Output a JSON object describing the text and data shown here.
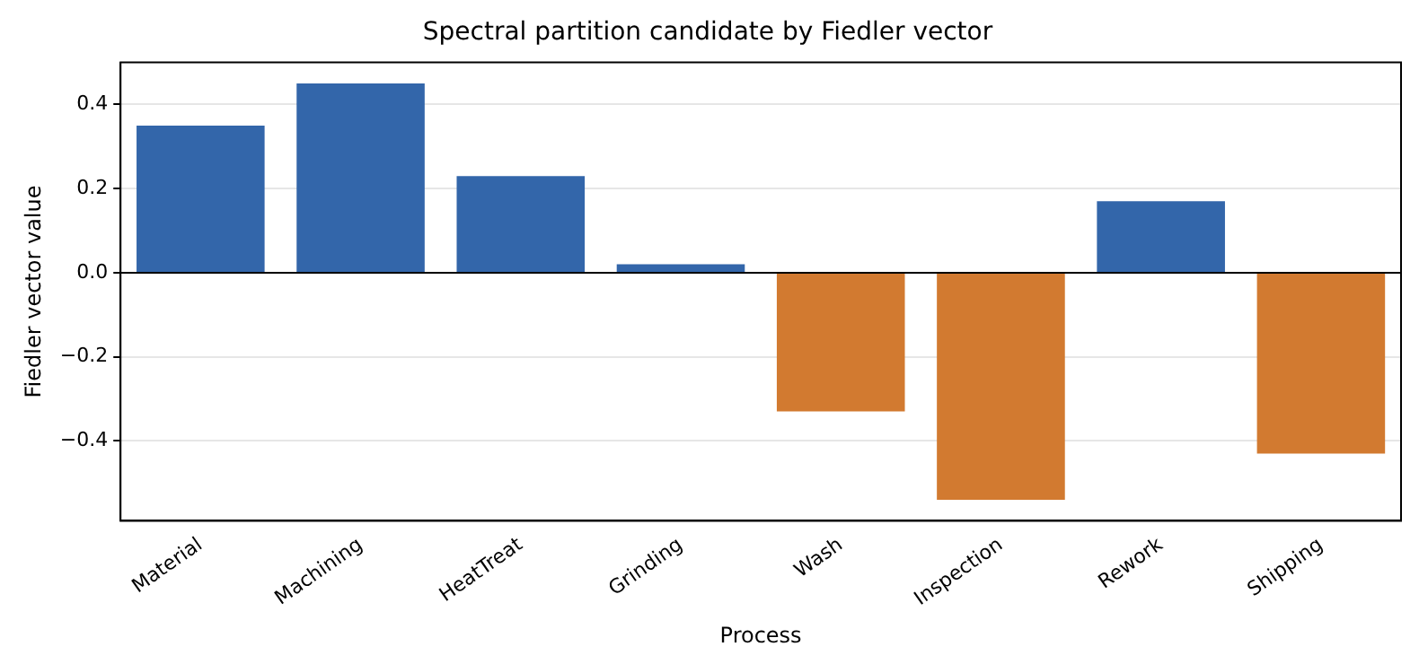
{
  "chart_data": {
    "type": "bar",
    "title": "Spectral partition candidate by Fiedler vector",
    "xlabel": "Process",
    "ylabel": "Fiedler vector value",
    "categories": [
      "Material",
      "Machining",
      "HeatTreat",
      "Grinding",
      "Wash",
      "Inspection",
      "Rework",
      "Shipping"
    ],
    "values": [
      0.35,
      0.45,
      0.23,
      0.02,
      -0.33,
      -0.54,
      0.17,
      -0.43
    ],
    "colors": [
      "#3366aa",
      "#3366aa",
      "#3366aa",
      "#3366aa",
      "#d27a30",
      "#d27a30",
      "#3366aa",
      "#d27a30"
    ],
    "ylim": [
      -0.59,
      0.5
    ],
    "yticks": [
      {
        "value": -0.4,
        "label": "−0.4"
      },
      {
        "value": -0.2,
        "label": "−0.2"
      },
      {
        "value": 0,
        "label": "0.0"
      },
      {
        "value": 0.2,
        "label": "0.2"
      },
      {
        "value": 0.4,
        "label": "0.4"
      }
    ],
    "grid": "y",
    "legend": false,
    "ref_lines": [
      {
        "axis": "y",
        "value": 0,
        "color": "#000000"
      }
    ]
  }
}
